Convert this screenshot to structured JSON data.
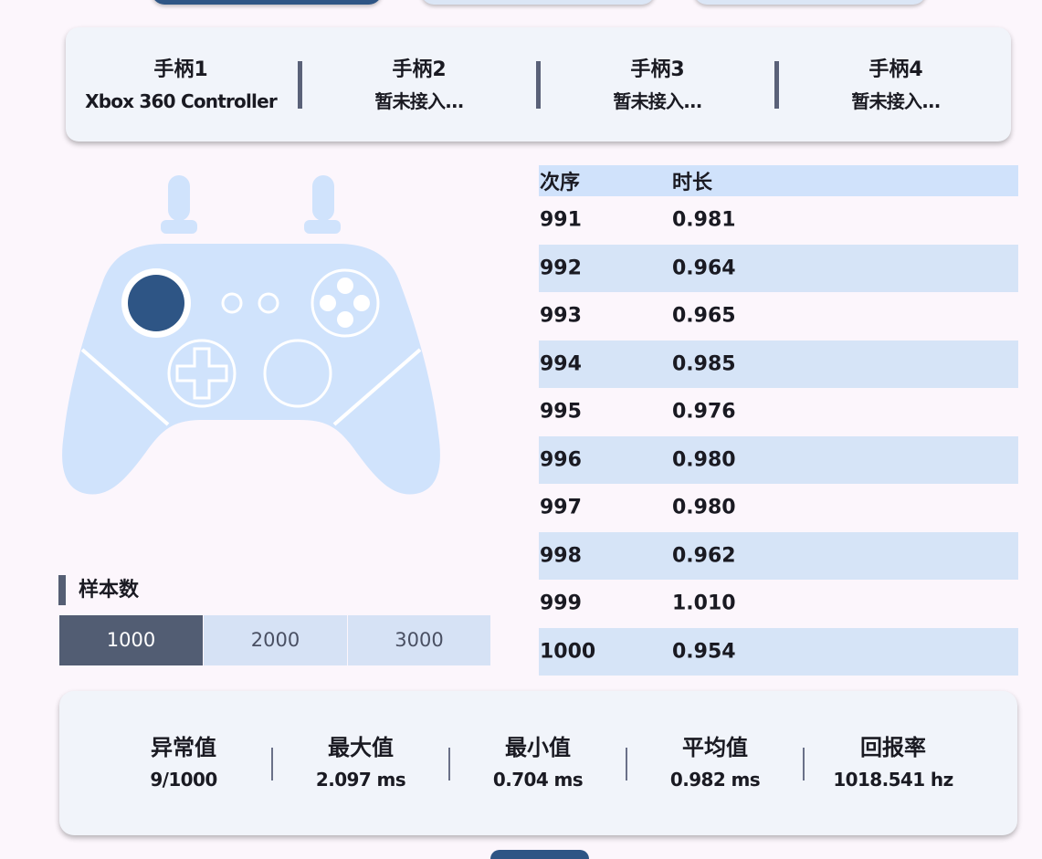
{
  "controllers": [
    {
      "name": "手柄1",
      "device": "Xbox 360 Controller"
    },
    {
      "name": "手柄2",
      "device": "暂未接入..."
    },
    {
      "name": "手柄3",
      "device": "暂未接入..."
    },
    {
      "name": "手柄4",
      "device": "暂未接入..."
    }
  ],
  "sample_count": {
    "title": "样本数",
    "options": [
      "1000",
      "2000",
      "3000"
    ],
    "selected": "1000"
  },
  "table": {
    "headers": [
      "次序",
      "时长"
    ],
    "rows": [
      [
        "991",
        "0.981"
      ],
      [
        "992",
        "0.964"
      ],
      [
        "993",
        "0.965"
      ],
      [
        "994",
        "0.985"
      ],
      [
        "995",
        "0.976"
      ],
      [
        "996",
        "0.980"
      ],
      [
        "997",
        "0.980"
      ],
      [
        "998",
        "0.962"
      ],
      [
        "999",
        "1.010"
      ],
      [
        "1000",
        "0.954"
      ]
    ]
  },
  "stats": [
    {
      "label": "异常值",
      "value": "9/1000"
    },
    {
      "label": "最大值",
      "value": "2.097 ms"
    },
    {
      "label": "最小值",
      "value": "0.704 ms"
    },
    {
      "label": "平均值",
      "value": "0.982 ms"
    },
    {
      "label": "回报率",
      "value": "1018.541 hz"
    }
  ],
  "colors": {
    "accent": "#2e5585",
    "pad_fill": "#d0e3fc",
    "selected_segment": "#525d73",
    "row_alt": "#d6e4f7"
  },
  "icons": {
    "gamepad": "gamepad-icon"
  }
}
